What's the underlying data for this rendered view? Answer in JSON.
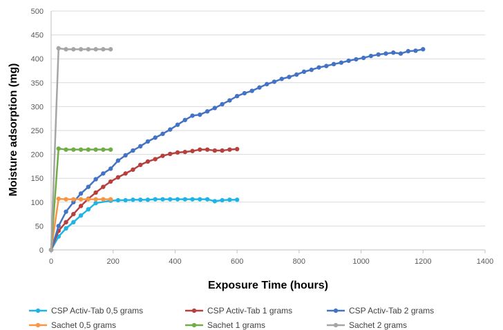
{
  "chart_data": {
    "type": "line",
    "title": "",
    "xlabel": "Exposure Time (hours)",
    "ylabel": "Moisture adsorption (mg)",
    "xlim": [
      0,
      1400
    ],
    "ylim": [
      0,
      500
    ],
    "xticks": [
      0,
      200,
      400,
      600,
      800,
      1000,
      1200,
      1400
    ],
    "yticks": [
      0,
      50,
      100,
      150,
      200,
      250,
      300,
      350,
      400,
      450,
      500
    ],
    "grid": "horizontal major gridlines",
    "legend_position": "bottom",
    "series": [
      {
        "name": "CSP Activ-Tab 0,5 grams",
        "color": "#1EB4E6",
        "x": [
          0,
          24,
          48,
          72,
          96,
          120,
          144,
          192,
          216,
          240,
          264,
          288,
          312,
          336,
          360,
          384,
          408,
          432,
          456,
          480,
          504,
          528,
          552,
          576,
          600
        ],
        "y": [
          0,
          28,
          45,
          58,
          72,
          85,
          98,
          103,
          104,
          104,
          105,
          105,
          105,
          106,
          106,
          106,
          106,
          106,
          106,
          106,
          106,
          102,
          104,
          105,
          105
        ]
      },
      {
        "name": "CSP Activ-Tab 1 grams",
        "color": "#B5403E",
        "x": [
          0,
          24,
          48,
          72,
          96,
          120,
          144,
          168,
          192,
          216,
          240,
          264,
          288,
          312,
          336,
          360,
          384,
          408,
          432,
          456,
          480,
          504,
          528,
          552,
          576,
          600
        ],
        "y": [
          0,
          40,
          58,
          75,
          92,
          107,
          120,
          132,
          143,
          152,
          160,
          168,
          178,
          185,
          190,
          197,
          201,
          204,
          205,
          207,
          210,
          210,
          208,
          208,
          210,
          211
        ]
      },
      {
        "name": "CSP Activ-Tab 2 grams",
        "color": "#4472C4",
        "x": [
          0,
          24,
          48,
          72,
          96,
          120,
          144,
          168,
          192,
          216,
          240,
          264,
          288,
          312,
          336,
          360,
          384,
          408,
          432,
          456,
          480,
          504,
          528,
          552,
          576,
          600,
          624,
          648,
          672,
          696,
          720,
          744,
          768,
          792,
          816,
          840,
          864,
          888,
          912,
          936,
          960,
          984,
          1008,
          1032,
          1056,
          1080,
          1104,
          1128,
          1152,
          1176,
          1200
        ],
        "y": [
          0,
          50,
          80,
          100,
          118,
          132,
          148,
          160,
          170,
          187,
          198,
          208,
          217,
          227,
          235,
          243,
          252,
          262,
          272,
          281,
          283,
          290,
          297,
          305,
          313,
          322,
          328,
          333,
          340,
          347,
          352,
          358,
          362,
          367,
          373,
          377,
          382,
          385,
          389,
          392,
          396,
          399,
          402,
          406,
          409,
          411,
          413,
          411,
          416,
          417,
          420
        ]
      },
      {
        "name": "Sachet 0,5 grams",
        "color": "#F79646",
        "x": [
          0,
          24,
          48,
          72,
          96,
          120,
          144,
          168,
          192
        ],
        "y": [
          0,
          107,
          106,
          106,
          106,
          106,
          106,
          106,
          106
        ]
      },
      {
        "name": "Sachet 1 grams",
        "color": "#70AD47",
        "x": [
          0,
          24,
          48,
          72,
          96,
          120,
          144,
          168,
          192
        ],
        "y": [
          0,
          212,
          210,
          210,
          210,
          210,
          210,
          210,
          210
        ]
      },
      {
        "name": "Sachet 2 grams",
        "color": "#A5A5A5",
        "x": [
          0,
          24,
          48,
          72,
          96,
          120,
          144,
          168,
          192
        ],
        "y": [
          0,
          422,
          420,
          420,
          420,
          420,
          420,
          420,
          420
        ]
      }
    ]
  }
}
